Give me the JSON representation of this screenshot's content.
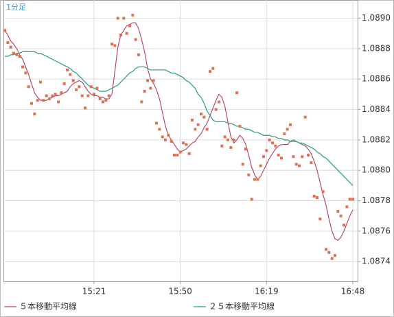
{
  "chart_data": {
    "type": "line",
    "label": "1分足",
    "x": [
      "14:51",
      "14:52",
      "14:53",
      "14:54",
      "14:55",
      "14:56",
      "14:57",
      "14:58",
      "14:59",
      "15:00",
      "15:01",
      "15:02",
      "15:03",
      "15:04",
      "15:05",
      "15:06",
      "15:07",
      "15:08",
      "15:09",
      "15:10",
      "15:11",
      "15:12",
      "15:13",
      "15:14",
      "15:15",
      "15:16",
      "15:17",
      "15:18",
      "15:19",
      "15:20",
      "15:21",
      "15:22",
      "15:23",
      "15:24",
      "15:25",
      "15:26",
      "15:27",
      "15:28",
      "15:29",
      "15:30",
      "15:31",
      "15:32",
      "15:33",
      "15:34",
      "15:35",
      "15:36",
      "15:37",
      "15:38",
      "15:39",
      "15:40",
      "15:41",
      "15:42",
      "15:43",
      "15:44",
      "15:45",
      "15:46",
      "15:47",
      "15:48",
      "15:49",
      "15:50",
      "15:51",
      "15:52",
      "15:53",
      "15:54",
      "15:55",
      "15:56",
      "15:57",
      "15:58",
      "15:59",
      "16:00",
      "16:01",
      "16:02",
      "16:03",
      "16:04",
      "16:05",
      "16:06",
      "16:07",
      "16:08",
      "16:09",
      "16:10",
      "16:11",
      "16:12",
      "16:13",
      "16:14",
      "16:15",
      "16:16",
      "16:17",
      "16:18",
      "16:19",
      "16:20",
      "16:21",
      "16:22",
      "16:23",
      "16:24",
      "16:25",
      "16:26",
      "16:27",
      "16:28",
      "16:29",
      "16:30",
      "16:31",
      "16:32",
      "16:33",
      "16:34",
      "16:35",
      "16:36",
      "16:37",
      "16:38",
      "16:39",
      "16:40",
      "16:41",
      "16:42",
      "16:43",
      "16:44",
      "16:45",
      "16:46",
      "16:47",
      "16:48"
    ],
    "values": [
      1.08892,
      1.08884,
      1.08881,
      1.08877,
      1.08876,
      1.08875,
      1.08868,
      1.08864,
      1.08855,
      1.08844,
      1.08837,
      1.08846,
      1.08858,
      1.08846,
      1.08849,
      1.08847,
      1.08849,
      1.0885,
      1.08845,
      1.08851,
      1.08857,
      1.08866,
      1.08863,
      1.08859,
      1.08853,
      1.08855,
      1.08849,
      1.08841,
      1.08849,
      1.08855,
      1.0885,
      1.08854,
      1.08847,
      1.08845,
      1.08846,
      1.08849,
      1.08883,
      1.08882,
      1.089,
      1.08889,
      1.089,
      1.0889,
      1.08895,
      1.08902,
      1.08886,
      1.08876,
      1.08845,
      1.08852,
      1.08859,
      1.08854,
      1.08859,
      1.08831,
      1.08827,
      1.08822,
      1.0882,
      1.08823,
      1.08819,
      1.0881,
      1.0881,
      1.08812,
      1.08818,
      1.08817,
      1.08811,
      1.08833,
      1.08827,
      1.0883,
      1.08837,
      1.08835,
      1.08827,
      1.08865,
      1.08867,
      1.0884,
      1.08845,
      1.08816,
      1.08822,
      1.0882,
      1.08815,
      1.0882,
      1.08851,
      1.08829,
      1.08804,
      1.08814,
      1.08797,
      1.08781,
      1.08794,
      1.08794,
      1.08803,
      1.08809,
      1.08813,
      1.0882,
      1.08818,
      1.08816,
      1.0881,
      1.08808,
      1.08824,
      1.08827,
      1.0883,
      1.08809,
      1.08804,
      1.08803,
      1.08809,
      1.08835,
      1.0881,
      1.08805,
      1.08783,
      1.08782,
      1.08768,
      1.08786,
      1.08748,
      1.08746,
      1.08742,
      1.08744,
      1.08773,
      1.0877,
      1.08764,
      1.08776,
      1.08781,
      1.08781
    ],
    "color": "#e0704f",
    "series": [
      {
        "name": "５本移動平均線",
        "color": "#b34a70",
        "values": [
          1.08892,
          1.08889,
          1.08885,
          1.08883,
          1.0888,
          1.08876,
          1.08873,
          1.08868,
          1.08863,
          1.08857,
          1.08851,
          1.08848,
          1.08846,
          1.08846,
          1.08846,
          1.08847,
          1.08848,
          1.08849,
          1.08849,
          1.0885,
          1.08851,
          1.08852,
          1.08855,
          1.08857,
          1.08858,
          1.08859,
          1.08858,
          1.08855,
          1.08852,
          1.0885,
          1.08849,
          1.08849,
          1.08848,
          1.08848,
          1.08847,
          1.08847,
          1.0885,
          1.08865,
          1.08881,
          1.08889,
          1.08892,
          1.08895,
          1.08896,
          1.08897,
          1.08897,
          1.08893,
          1.08886,
          1.08878,
          1.08867,
          1.0886,
          1.08857,
          1.08853,
          1.08847,
          1.08838,
          1.08829,
          1.08823,
          1.0882,
          1.08817,
          1.08814,
          1.08812,
          1.08813,
          1.08814,
          1.08816,
          1.08818,
          1.08819,
          1.08822,
          1.08824,
          1.08828,
          1.08831,
          1.08836,
          1.08841,
          1.08846,
          1.0885,
          1.08848,
          1.08842,
          1.08832,
          1.08822,
          1.08818,
          1.0882,
          1.08823,
          1.08821,
          1.08817,
          1.0881,
          1.08802,
          1.08797,
          1.08794,
          1.08796,
          1.088,
          1.08804,
          1.08808,
          1.08811,
          1.08814,
          1.08816,
          1.08817,
          1.08817,
          1.08817,
          1.08819,
          1.0882,
          1.08819,
          1.08818,
          1.08817,
          1.08816,
          1.08814,
          1.08811,
          1.08806,
          1.088,
          1.08792,
          1.08784,
          1.08777,
          1.08768,
          1.0876,
          1.08755,
          1.08754,
          1.08756,
          1.0876,
          1.08765,
          1.0877,
          1.08774
        ]
      },
      {
        "name": "２５本移動平均線",
        "color": "#1f9e80",
        "values": [
          1.08875,
          1.08875,
          1.08876,
          1.08876,
          1.08877,
          1.08877,
          1.08878,
          1.08878,
          1.08878,
          1.08878,
          1.08878,
          1.08877,
          1.08877,
          1.08876,
          1.08875,
          1.08874,
          1.08873,
          1.08872,
          1.08871,
          1.0887,
          1.08869,
          1.08868,
          1.08867,
          1.08865,
          1.08864,
          1.08862,
          1.0886,
          1.08858,
          1.08856,
          1.08855,
          1.08854,
          1.08853,
          1.08852,
          1.08852,
          1.08852,
          1.08853,
          1.08854,
          1.08855,
          1.08856,
          1.08858,
          1.0886,
          1.08862,
          1.08864,
          1.08865,
          1.08867,
          1.08868,
          1.08868,
          1.08868,
          1.08867,
          1.08866,
          1.08866,
          1.08866,
          1.08866,
          1.08866,
          1.08866,
          1.08865,
          1.08864,
          1.08864,
          1.08863,
          1.08862,
          1.08861,
          1.08859,
          1.08858,
          1.08856,
          1.08854,
          1.0885,
          1.08848,
          1.08844,
          1.08839,
          1.08836,
          1.08833,
          1.08832,
          1.08832,
          1.08832,
          1.08832,
          1.08831,
          1.08831,
          1.0883,
          1.08829,
          1.08829,
          1.08828,
          1.08827,
          1.08827,
          1.08826,
          1.08825,
          1.08825,
          1.08824,
          1.08823,
          1.08823,
          1.08823,
          1.08822,
          1.08822,
          1.08821,
          1.08821,
          1.0882,
          1.0882,
          1.08819,
          1.08819,
          1.08819,
          1.08818,
          1.08818,
          1.08817,
          1.08816,
          1.08815,
          1.08814,
          1.08812,
          1.08811,
          1.08809,
          1.08808,
          1.08806,
          1.08804,
          1.08802,
          1.088,
          1.08798,
          1.08796,
          1.08794,
          1.08792,
          1.0879
        ]
      }
    ],
    "ylim": [
      1.08727,
      1.08912
    ],
    "yticks": [
      1.0874,
      1.0876,
      1.0878,
      {
        "value": 1.088,
        "label": "1.0880"
      },
      1.0882,
      1.0884,
      1.0886,
      1.0888,
      {
        "value": 1.089,
        "label": "1.0890"
      }
    ],
    "xticks": [
      "15:21",
      "15:50",
      "16:19",
      "16:48"
    ],
    "grid": true
  }
}
